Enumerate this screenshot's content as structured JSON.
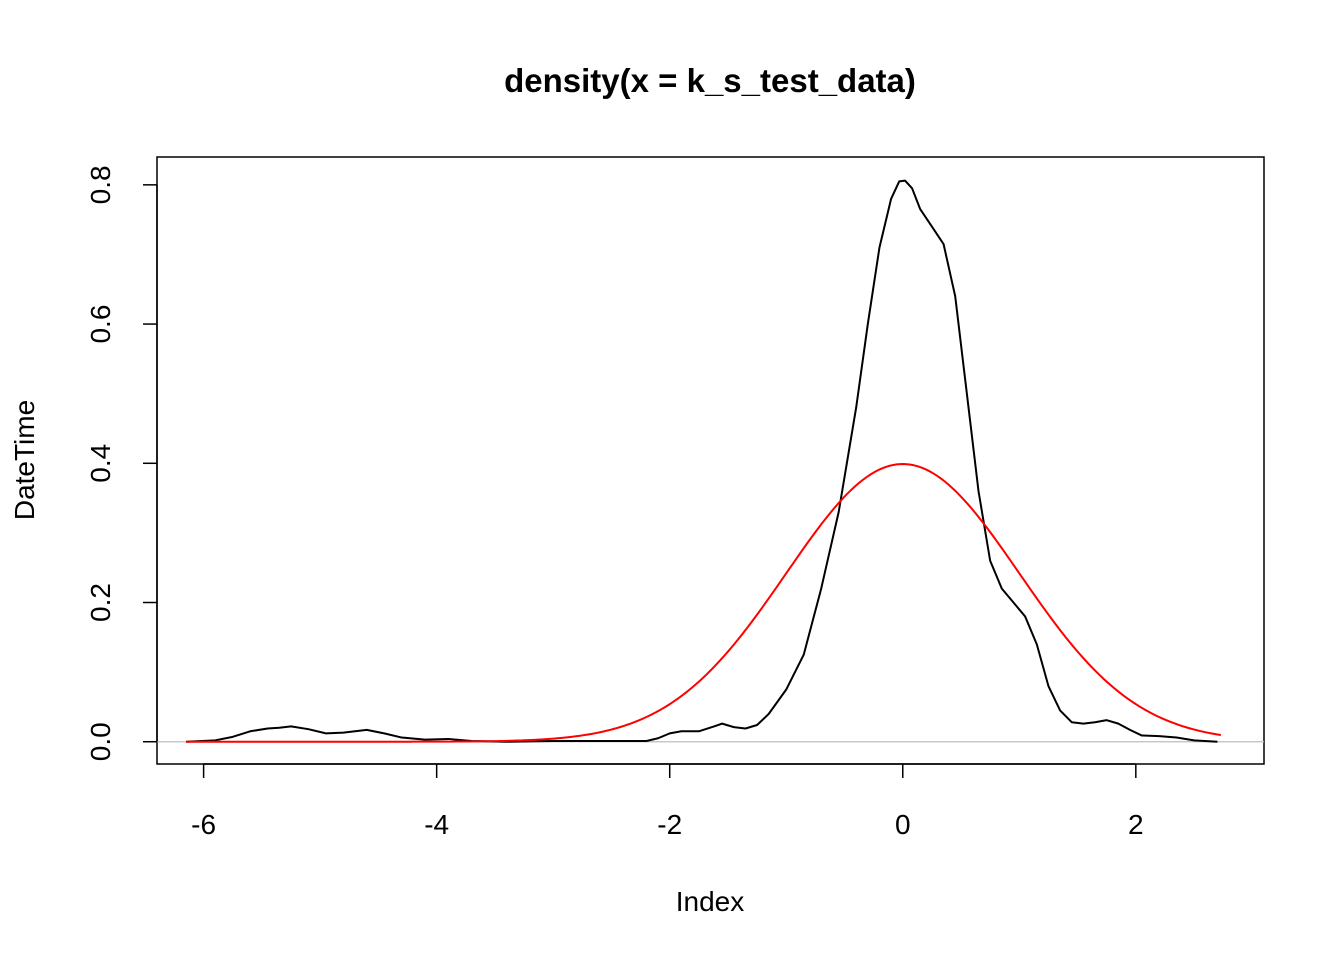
{
  "chart_data": {
    "type": "line",
    "title": "density(x = k_s_test_data)",
    "xlabel": "Index",
    "ylabel": "DateTime",
    "xlim": [
      -6.4,
      3.1
    ],
    "ylim": [
      -0.032,
      0.84
    ],
    "x_ticks": [
      -6,
      -4,
      -2,
      0,
      2
    ],
    "x_tick_labels": [
      "-6",
      "-4",
      "-2",
      "0",
      "2"
    ],
    "y_ticks": [
      0.0,
      0.2,
      0.4,
      0.6,
      0.8
    ],
    "y_tick_labels": [
      "0.0",
      "0.2",
      "0.4",
      "0.6",
      "0.8"
    ],
    "grid": false,
    "baseline": {
      "y": 0,
      "color": "#bebebe"
    },
    "colors": {
      "density": "#000000",
      "normal": "#ff0000"
    },
    "series": [
      {
        "key": "density",
        "color": "#000000",
        "points": [
          [
            -6.15,
            0.0
          ],
          [
            -5.9,
            0.002
          ],
          [
            -5.75,
            0.007
          ],
          [
            -5.6,
            0.015
          ],
          [
            -5.45,
            0.019
          ],
          [
            -5.35,
            0.02
          ],
          [
            -5.25,
            0.022
          ],
          [
            -5.1,
            0.018
          ],
          [
            -4.95,
            0.012
          ],
          [
            -4.8,
            0.013
          ],
          [
            -4.6,
            0.017
          ],
          [
            -4.45,
            0.012
          ],
          [
            -4.3,
            0.006
          ],
          [
            -4.1,
            0.003
          ],
          [
            -3.9,
            0.004
          ],
          [
            -3.7,
            0.001
          ],
          [
            -3.4,
            0.0
          ],
          [
            -3.0,
            0.001
          ],
          [
            -2.5,
            0.001
          ],
          [
            -2.2,
            0.001
          ],
          [
            -2.1,
            0.005
          ],
          [
            -2.0,
            0.012
          ],
          [
            -1.9,
            0.015
          ],
          [
            -1.75,
            0.015
          ],
          [
            -1.62,
            0.022
          ],
          [
            -1.55,
            0.026
          ],
          [
            -1.45,
            0.021
          ],
          [
            -1.35,
            0.019
          ],
          [
            -1.25,
            0.024
          ],
          [
            -1.15,
            0.04
          ],
          [
            -1.0,
            0.075
          ],
          [
            -0.85,
            0.125
          ],
          [
            -0.7,
            0.22
          ],
          [
            -0.55,
            0.33
          ],
          [
            -0.4,
            0.48
          ],
          [
            -0.3,
            0.6
          ],
          [
            -0.2,
            0.71
          ],
          [
            -0.1,
            0.78
          ],
          [
            -0.03,
            0.805
          ],
          [
            0.02,
            0.806
          ],
          [
            0.08,
            0.795
          ],
          [
            0.15,
            0.765
          ],
          [
            0.25,
            0.74
          ],
          [
            0.35,
            0.715
          ],
          [
            0.45,
            0.64
          ],
          [
            0.55,
            0.5
          ],
          [
            0.65,
            0.36
          ],
          [
            0.75,
            0.26
          ],
          [
            0.85,
            0.22
          ],
          [
            0.95,
            0.2
          ],
          [
            1.05,
            0.18
          ],
          [
            1.15,
            0.14
          ],
          [
            1.25,
            0.08
          ],
          [
            1.35,
            0.045
          ],
          [
            1.45,
            0.028
          ],
          [
            1.55,
            0.026
          ],
          [
            1.65,
            0.028
          ],
          [
            1.75,
            0.031
          ],
          [
            1.85,
            0.026
          ],
          [
            1.95,
            0.017
          ],
          [
            2.05,
            0.009
          ],
          [
            2.2,
            0.008
          ],
          [
            2.35,
            0.006
          ],
          [
            2.5,
            0.002
          ],
          [
            2.7,
            0.0
          ]
        ]
      },
      {
        "key": "normal",
        "color": "#ff0000",
        "function": "dnorm",
        "mean": 0,
        "sd": 1,
        "x_range": [
          -6.15,
          2.73
        ]
      }
    ]
  }
}
